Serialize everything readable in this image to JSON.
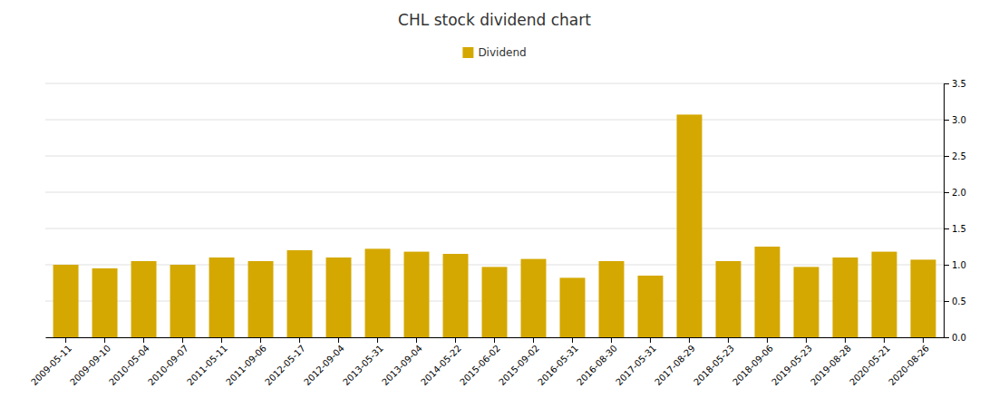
{
  "chart_data": {
    "type": "bar",
    "title": "CHL stock dividend chart",
    "categories": [
      "2009-05-11",
      "2009-09-10",
      "2010-05-04",
      "2010-09-07",
      "2011-05-11",
      "2011-09-06",
      "2012-05-17",
      "2012-09-04",
      "2013-05-31",
      "2013-09-04",
      "2014-05-22",
      "2015-06-02",
      "2015-09-02",
      "2016-05-31",
      "2016-08-30",
      "2017-05-31",
      "2017-08-29",
      "2018-05-23",
      "2018-09-06",
      "2019-05-23",
      "2019-08-28",
      "2020-05-21",
      "2020-08-26"
    ],
    "series": [
      {
        "name": "Dividend",
        "color": "#D4A800",
        "values": [
          1.0,
          0.95,
          1.05,
          1.0,
          1.1,
          1.05,
          1.2,
          1.1,
          1.22,
          1.18,
          1.15,
          0.97,
          1.08,
          0.82,
          1.05,
          0.85,
          3.07,
          1.05,
          1.25,
          0.97,
          1.1,
          1.18,
          1.07
        ]
      }
    ],
    "ylim": [
      0,
      3.5
    ],
    "yticks": [
      {
        "value": 0,
        "label": "0.0"
      },
      0.5,
      {
        "value": 1,
        "label": "1.0"
      },
      1.5,
      {
        "value": 2,
        "label": "2.0"
      },
      2.5,
      {
        "value": 3,
        "label": "3.0"
      },
      3.5
    ],
    "grid": true,
    "legend": "top"
  }
}
